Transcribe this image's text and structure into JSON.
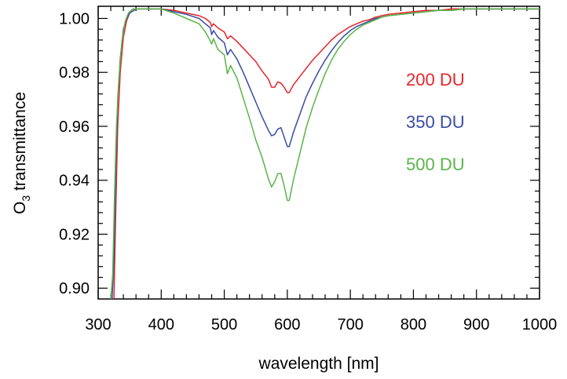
{
  "chart_data": {
    "type": "line",
    "title": "",
    "xlabel": "wavelength [nm]",
    "ylabel_main": "O",
    "ylabel_sub": "3",
    "ylabel_rest": " transmittance",
    "xlim": [
      300,
      1000
    ],
    "ylim": [
      0.896,
      1.0045
    ],
    "grid": false,
    "legend_position": "right-middle (text labels in plot)",
    "x_ticks": [
      300,
      400,
      500,
      600,
      700,
      800,
      900,
      1000
    ],
    "x_tick_labels": [
      "300",
      "400",
      "500",
      "600",
      "700",
      "800",
      "900",
      "1000"
    ],
    "y_ticks": [
      0.9,
      0.92,
      0.94,
      0.96,
      0.98,
      1.0
    ],
    "y_tick_labels": [
      "0.90",
      "0.92",
      "0.94",
      "0.96",
      "0.98",
      "1.00"
    ],
    "series": [
      {
        "name": "200 DU",
        "color": "#e8232a",
        "x": [
          325,
          328,
          331,
          335,
          340,
          345,
          350,
          360,
          380,
          400,
          420,
          440,
          460,
          470,
          478,
          480,
          483,
          490,
          500,
          505,
          510,
          520,
          530,
          540,
          550,
          560,
          570,
          575,
          580,
          585,
          590,
          595,
          600,
          603,
          610,
          620,
          630,
          640,
          650,
          660,
          670,
          680,
          690,
          700,
          710,
          720,
          730,
          740,
          750,
          760,
          780,
          800,
          820,
          840,
          860,
          880,
          900,
          920,
          940,
          960,
          980,
          1000
        ],
        "y": [
          0.896,
          0.93,
          0.96,
          0.98,
          0.993,
          0.999,
          1.002,
          1.0035,
          1.0035,
          1.0035,
          1.003,
          1.002,
          1.001,
          1.0,
          0.9985,
          0.997,
          0.998,
          0.9965,
          0.995,
          0.9925,
          0.9935,
          0.9915,
          0.989,
          0.9865,
          0.984,
          0.9805,
          0.9775,
          0.9745,
          0.9745,
          0.9765,
          0.976,
          0.9745,
          0.9725,
          0.9725,
          0.9755,
          0.9785,
          0.9815,
          0.9845,
          0.987,
          0.9895,
          0.992,
          0.994,
          0.9955,
          0.997,
          0.998,
          0.999,
          0.9995,
          1.0005,
          1.001,
          1.0015,
          1.002,
          1.0025,
          1.003,
          1.003,
          1.0035,
          1.0035,
          1.0035,
          1.0035,
          1.0035,
          1.0035,
          1.0035,
          1.0035
        ]
      },
      {
        "name": "350 DU",
        "color": "#3a4ba3",
        "x": [
          322,
          325,
          328,
          331,
          335,
          340,
          345,
          350,
          360,
          380,
          400,
          420,
          440,
          460,
          470,
          478,
          480,
          483,
          490,
          500,
          505,
          510,
          520,
          530,
          540,
          550,
          560,
          570,
          575,
          580,
          585,
          590,
          595,
          600,
          603,
          610,
          620,
          630,
          640,
          650,
          660,
          670,
          680,
          690,
          700,
          710,
          720,
          730,
          740,
          750,
          760,
          780,
          800,
          820,
          840,
          860,
          880,
          900,
          920,
          940,
          960,
          980,
          1000
        ],
        "y": [
          0.896,
          0.91,
          0.945,
          0.97,
          0.985,
          0.996,
          1.0,
          1.002,
          1.0035,
          1.0035,
          1.0035,
          1.0025,
          1.0015,
          1.0,
          0.998,
          0.9965,
          0.994,
          0.9955,
          0.993,
          0.991,
          0.9865,
          0.9885,
          0.985,
          0.98,
          0.9745,
          0.969,
          0.9635,
          0.9585,
          0.9565,
          0.957,
          0.959,
          0.9595,
          0.956,
          0.9525,
          0.9525,
          0.958,
          0.9645,
          0.971,
          0.976,
          0.9805,
          0.9845,
          0.988,
          0.991,
          0.9935,
          0.9955,
          0.997,
          0.998,
          0.999,
          1.0,
          1.0005,
          1.001,
          1.0015,
          1.002,
          1.0025,
          1.003,
          1.003,
          1.0035,
          1.0035,
          1.0035,
          1.0035,
          1.0035,
          1.0035,
          1.0035
        ]
      },
      {
        "name": "500 DU",
        "color": "#58b646",
        "x": [
          320,
          323,
          326,
          329,
          333,
          338,
          343,
          348,
          355,
          370,
          400,
          420,
          440,
          460,
          470,
          476,
          480,
          483,
          490,
          500,
          505,
          510,
          520,
          530,
          540,
          550,
          560,
          570,
          575,
          580,
          585,
          590,
          595,
          600,
          603,
          610,
          620,
          630,
          640,
          650,
          660,
          670,
          680,
          690,
          700,
          710,
          720,
          730,
          740,
          750,
          760,
          780,
          800,
          820,
          840,
          860,
          880,
          900,
          920,
          940,
          960,
          980,
          1000
        ],
        "y": [
          0.896,
          0.905,
          0.935,
          0.96,
          0.978,
          0.992,
          0.999,
          1.002,
          1.0035,
          1.0035,
          1.0035,
          1.002,
          1.0,
          0.998,
          0.995,
          0.9925,
          0.9905,
          0.9925,
          0.9885,
          0.9865,
          0.9795,
          0.9825,
          0.978,
          0.9705,
          0.963,
          0.955,
          0.9485,
          0.9405,
          0.9375,
          0.9395,
          0.9425,
          0.9425,
          0.938,
          0.9325,
          0.9325,
          0.9405,
          0.95,
          0.9595,
          0.967,
          0.9735,
          0.9795,
          0.9845,
          0.9885,
          0.9915,
          0.994,
          0.996,
          0.9975,
          0.9985,
          0.9995,
          1.0005,
          1.001,
          1.0015,
          1.002,
          1.0025,
          1.003,
          1.003,
          1.0035,
          1.0035,
          1.0035,
          1.0035,
          1.0035,
          1.0035,
          1.0035
        ]
      }
    ]
  }
}
